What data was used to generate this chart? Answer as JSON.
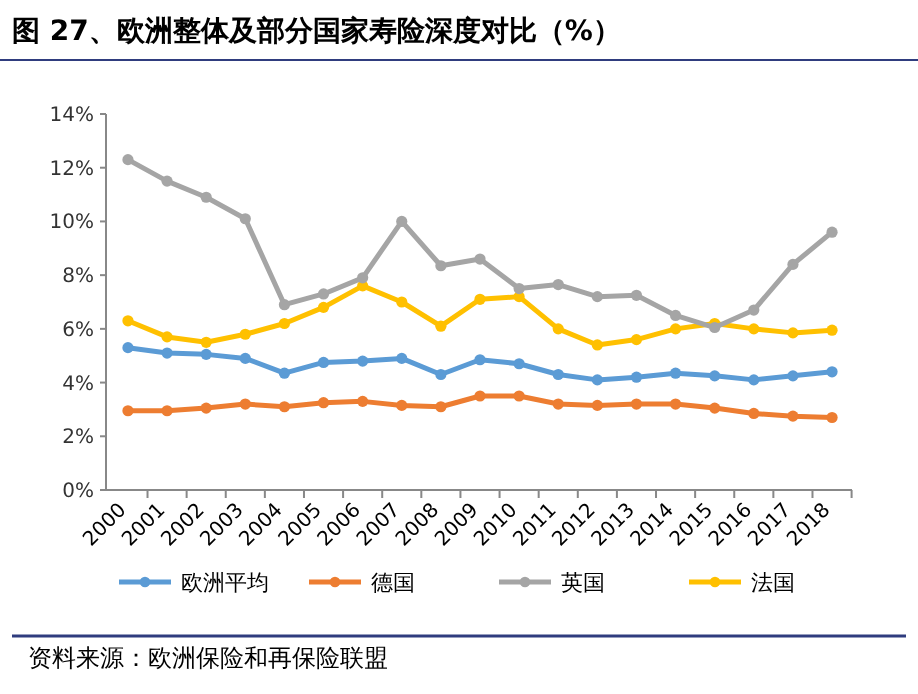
{
  "chart_data": {
    "type": "line",
    "title": "图 27、欧洲整体及部分国家寿险深度对比（%）",
    "categories": [
      "2000",
      "2001",
      "2002",
      "2003",
      "2004",
      "2005",
      "2006",
      "2007",
      "2008",
      "2009",
      "2010",
      "2011",
      "2012",
      "2013",
      "2014",
      "2015",
      "2016",
      "2017",
      "2018"
    ],
    "series": [
      {
        "name": "欧洲平均",
        "color": "#5b9bd5",
        "values": [
          5.3,
          5.1,
          5.05,
          4.9,
          4.35,
          4.75,
          4.8,
          4.9,
          4.3,
          4.85,
          4.7,
          4.3,
          4.1,
          4.2,
          4.35,
          4.25,
          4.1,
          4.25,
          4.4
        ]
      },
      {
        "name": "德国",
        "color": "#ed7d31",
        "values": [
          2.95,
          2.95,
          3.05,
          3.2,
          3.1,
          3.25,
          3.3,
          3.15,
          3.1,
          3.5,
          3.5,
          3.2,
          3.15,
          3.2,
          3.2,
          3.05,
          2.85,
          2.75,
          2.7
        ]
      },
      {
        "name": "英国",
        "color": "#a5a5a5",
        "values": [
          12.3,
          11.5,
          10.9,
          10.1,
          6.9,
          7.3,
          7.9,
          10.0,
          8.35,
          8.6,
          7.5,
          7.65,
          7.2,
          7.25,
          6.5,
          6.05,
          6.7,
          8.4,
          9.6
        ]
      },
      {
        "name": "法国",
        "color": "#ffc000",
        "values": [
          6.3,
          5.7,
          5.5,
          5.8,
          6.2,
          6.8,
          7.6,
          7.0,
          6.1,
          7.1,
          7.2,
          6.0,
          5.4,
          5.6,
          6.0,
          6.2,
          6.0,
          5.85,
          5.95
        ]
      }
    ],
    "ylim": [
      0,
      14
    ],
    "yticks": [
      {
        "value": 0,
        "label": "0%"
      },
      {
        "value": 2,
        "label": "2%"
      },
      {
        "value": 4,
        "label": "4%"
      },
      {
        "value": 6,
        "label": "6%"
      },
      {
        "value": 8,
        "label": "8%"
      },
      {
        "value": 10,
        "label": "10%"
      },
      {
        "value": 12,
        "label": "12%"
      },
      {
        "value": 14,
        "label": "14%"
      }
    ],
    "marker": "circle",
    "legend": "bottom",
    "grid": false,
    "annotations": [
      "资料来源：欧洲保险和再保险联盟"
    ]
  }
}
